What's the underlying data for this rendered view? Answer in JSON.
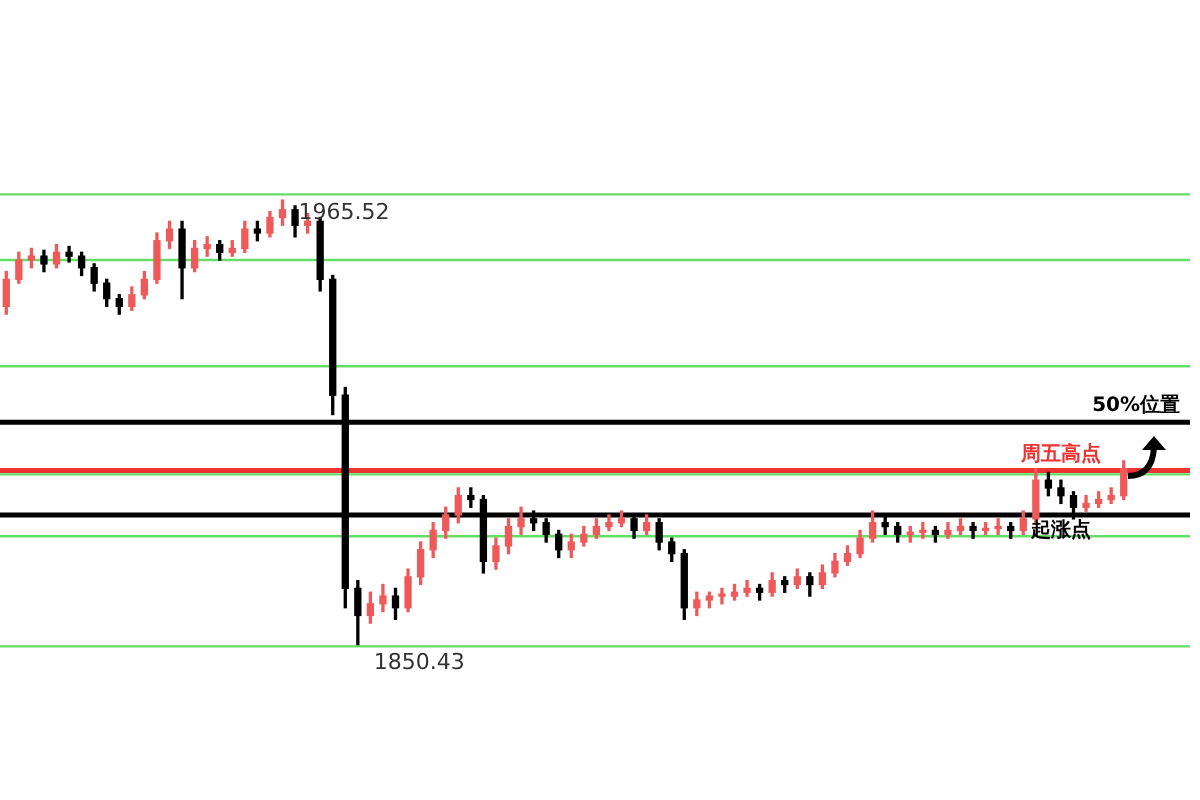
{
  "chart_data": {
    "type": "candlestick",
    "categories": [
      null,
      null,
      null,
      null,
      null,
      null,
      null,
      null,
      null,
      null,
      null,
      null,
      null,
      null,
      null,
      null,
      null,
      null,
      null,
      null,
      null,
      null,
      null,
      null,
      null,
      null,
      null,
      null,
      null,
      null,
      null,
      null,
      null,
      null,
      null,
      null,
      null,
      null,
      null,
      null,
      null,
      null,
      null,
      null,
      null,
      null,
      null,
      null,
      null,
      null,
      null,
      null,
      null,
      null,
      null,
      null,
      null,
      null,
      null,
      null,
      null,
      null,
      null,
      null,
      null,
      null,
      null,
      null,
      null,
      null,
      null,
      null,
      null,
      null,
      null,
      null,
      null,
      null,
      null,
      null,
      null,
      null,
      null,
      null,
      null,
      null,
      null,
      null,
      null,
      null
    ],
    "ohlc": [
      [
        1938,
        1947,
        1936,
        1945
      ],
      [
        1945,
        1952,
        1944,
        1950
      ],
      [
        1950,
        1953,
        1948,
        1951
      ],
      [
        1951,
        1952.5,
        1947,
        1949
      ],
      [
        1949,
        1954,
        1948,
        1952
      ],
      [
        1952,
        1953.5,
        1949.5,
        1951
      ],
      [
        1951,
        1952,
        1946,
        1948
      ],
      [
        1948,
        1949,
        1942,
        1944
      ],
      [
        1944,
        1945,
        1938,
        1940
      ],
      [
        1940,
        1941,
        1936,
        1938
      ],
      [
        1938,
        1943,
        1937,
        1941
      ],
      [
        1941,
        1947,
        1940,
        1945
      ],
      [
        1945,
        1957,
        1944,
        1955
      ],
      [
        1955,
        1960,
        1953,
        1958
      ],
      [
        1958,
        1960,
        1940,
        1948
      ],
      [
        1948,
        1955,
        1947,
        1953
      ],
      [
        1953,
        1956,
        1951,
        1954
      ],
      [
        1954,
        1955,
        1950,
        1952
      ],
      [
        1952,
        1955,
        1951,
        1953
      ],
      [
        1953,
        1960,
        1952,
        1958
      ],
      [
        1958,
        1960,
        1955,
        1957
      ],
      [
        1957,
        1962.5,
        1956,
        1961
      ],
      [
        1961,
        1965.52,
        1959,
        1963
      ],
      [
        1963,
        1964,
        1956,
        1959
      ],
      [
        1959,
        1962,
        1957,
        1960
      ],
      [
        1960,
        1961,
        1942,
        1945
      ],
      [
        1945,
        1946,
        1910,
        1915
      ],
      [
        1915,
        1917,
        1860,
        1865
      ],
      [
        1865,
        1867,
        1850.43,
        1858
      ],
      [
        1858,
        1864,
        1856,
        1861
      ],
      [
        1861,
        1866,
        1859,
        1863
      ],
      [
        1863,
        1865,
        1857,
        1860
      ],
      [
        1860,
        1870,
        1859,
        1868
      ],
      [
        1868,
        1877,
        1866,
        1875
      ],
      [
        1875,
        1882,
        1873,
        1880
      ],
      [
        1880,
        1886,
        1878,
        1884
      ],
      [
        1884,
        1891,
        1882,
        1889
      ],
      [
        1889,
        1891,
        1886,
        1888
      ],
      [
        1888,
        1889,
        1869,
        1872
      ],
      [
        1872,
        1878,
        1870,
        1876
      ],
      [
        1876,
        1883,
        1874,
        1881
      ],
      [
        1881,
        1886,
        1879,
        1883
      ],
      [
        1883,
        1885,
        1880,
        1882
      ],
      [
        1882,
        1883,
        1877,
        1879
      ],
      [
        1879,
        1880,
        1873,
        1875
      ],
      [
        1875,
        1879,
        1873,
        1877
      ],
      [
        1877,
        1881,
        1876,
        1879
      ],
      [
        1879,
        1883,
        1878,
        1881
      ],
      [
        1881,
        1884,
        1880,
        1882
      ],
      [
        1882,
        1885,
        1881,
        1883
      ],
      [
        1883,
        1884,
        1878,
        1880
      ],
      [
        1880,
        1884,
        1879,
        1882
      ],
      [
        1882,
        1883,
        1875,
        1877
      ],
      [
        1877,
        1878,
        1872,
        1874
      ],
      [
        1874,
        1875,
        1857,
        1860
      ],
      [
        1860,
        1864,
        1858,
        1862
      ],
      [
        1862,
        1864,
        1860,
        1863
      ],
      [
        1863,
        1865,
        1861,
        1863.5
      ],
      [
        1863,
        1866,
        1862,
        1864
      ],
      [
        1864,
        1867,
        1863,
        1865
      ],
      [
        1865,
        1866,
        1862,
        1864
      ],
      [
        1864,
        1869,
        1863,
        1867
      ],
      [
        1867,
        1868,
        1864,
        1866
      ],
      [
        1866,
        1870,
        1865,
        1868
      ],
      [
        1868,
        1869,
        1863,
        1866
      ],
      [
        1866,
        1871,
        1865,
        1869
      ],
      [
        1869,
        1874,
        1868,
        1872
      ],
      [
        1872,
        1876,
        1871,
        1874
      ],
      [
        1874,
        1880,
        1873,
        1878
      ],
      [
        1878,
        1885,
        1877,
        1882
      ],
      [
        1882,
        1884,
        1879,
        1881
      ],
      [
        1881,
        1882,
        1877,
        1879
      ],
      [
        1879,
        1881,
        1877,
        1879.5
      ],
      [
        1879.5,
        1882,
        1878,
        1880
      ],
      [
        1880,
        1881,
        1877,
        1879
      ],
      [
        1879,
        1882,
        1878,
        1880
      ],
      [
        1880,
        1883,
        1879,
        1881
      ],
      [
        1881,
        1882,
        1878,
        1880
      ],
      [
        1880,
        1882,
        1879,
        1880.5
      ],
      [
        1880.5,
        1883,
        1879,
        1881
      ],
      [
        1881,
        1882,
        1878,
        1880
      ],
      [
        1880,
        1885,
        1879,
        1883
      ],
      [
        1883,
        1896,
        1882,
        1893
      ],
      [
        1893,
        1895,
        1889,
        1891
      ],
      [
        1891,
        1893,
        1887,
        1889
      ],
      [
        1889,
        1890,
        1883,
        1886
      ],
      [
        1886,
        1889,
        1885,
        1887
      ],
      [
        1887,
        1890,
        1886,
        1888
      ],
      [
        1888,
        1891,
        1887,
        1889
      ],
      [
        1889,
        1898,
        1888,
        1896
      ]
    ],
    "colors": [
      "#ee5a5a",
      "#ee5a5a",
      "#ee5a5a",
      "#000000",
      "#ee5a5a",
      "#000000",
      "#000000",
      "#000000",
      "#000000",
      "#000000",
      "#ee5a5a",
      "#ee5a5a",
      "#ee5a5a",
      "#ee5a5a",
      "#000000",
      "#ee5a5a",
      "#ee5a5a",
      "#000000",
      "#ee5a5a",
      "#ee5a5a",
      "#000000",
      "#ee5a5a",
      "#ee5a5a",
      "#000000",
      "#ee5a5a",
      "#000000",
      "#000000",
      "#000000",
      "#000000",
      "#ee5a5a",
      "#ee5a5a",
      "#000000",
      "#ee5a5a",
      "#ee5a5a",
      "#ee5a5a",
      "#ee5a5a",
      "#ee5a5a",
      "#000000",
      "#000000",
      "#ee5a5a",
      "#ee5a5a",
      "#ee5a5a",
      "#000000",
      "#000000",
      "#000000",
      "#ee5a5a",
      "#ee5a5a",
      "#ee5a5a",
      "#ee5a5a",
      "#ee5a5a",
      "#000000",
      "#ee5a5a",
      "#000000",
      "#000000",
      "#000000",
      "#ee5a5a",
      "#ee5a5a",
      "#ee5a5a",
      "#ee5a5a",
      "#ee5a5a",
      "#000000",
      "#ee5a5a",
      "#000000",
      "#ee5a5a",
      "#000000",
      "#ee5a5a",
      "#ee5a5a",
      "#ee5a5a",
      "#ee5a5a",
      "#ee5a5a",
      "#000000",
      "#000000",
      "#ee5a5a",
      "#ee5a5a",
      "#000000",
      "#ee5a5a",
      "#ee5a5a",
      "#000000",
      "#ee5a5a",
      "#ee5a5a",
      "#000000",
      "#ee5a5a",
      "#ee5a5a",
      "#000000",
      "#000000",
      "#000000",
      "#ee5a5a",
      "#ee5a5a",
      "#ee5a5a",
      "#ee5a5a"
    ],
    "ref_lines": [
      {
        "axis": "y",
        "value": 1967,
        "color": "#66dd66"
      },
      {
        "axis": "y",
        "value": 1950,
        "color": "#66dd66"
      },
      {
        "axis": "y",
        "value": 1922.5,
        "color": "#66dd66"
      },
      {
        "axis": "y",
        "value": 1894.5,
        "color": "#66dd66"
      },
      {
        "axis": "y",
        "value": 1878.5,
        "color": "#66dd66"
      },
      {
        "axis": "y",
        "value": 1850,
        "color": "#66dd66"
      },
      {
        "axis": "y",
        "value": 1908,
        "label": "50%位置",
        "color": "#000000"
      },
      {
        "axis": "y",
        "value": 1895.5,
        "label": "周五高点",
        "color": "#ee3333"
      },
      {
        "axis": "y",
        "value": 1884,
        "label": "起涨点",
        "color": "#000000"
      }
    ],
    "annotations": [
      {
        "text": "1965.52",
        "y": 1965.52
      },
      {
        "text": "1850.43",
        "y": 1850.43
      }
    ]
  }
}
